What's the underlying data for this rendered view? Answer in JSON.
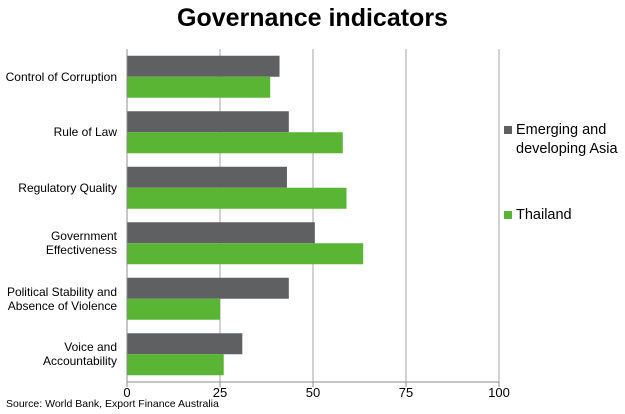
{
  "chart_data": {
    "type": "bar",
    "orientation": "horizontal",
    "title": "Governance indicators",
    "categories": [
      "Control of Corruption",
      "Rule of Law",
      "Regulatory Quality",
      "Government\nEffectiveness",
      "Political Stability and\nAbsence of Violence",
      "Voice and\nAccountability"
    ],
    "series": [
      {
        "name": "Emerging and\ndeveloping Asia",
        "color": "#5f6062",
        "values": [
          41,
          43.5,
          43,
          50.5,
          43.5,
          31
        ]
      },
      {
        "name": "Thailand",
        "color": "#59b533",
        "values": [
          38.5,
          58,
          59,
          63.5,
          25,
          26
        ]
      }
    ],
    "xlim": [
      0,
      100
    ],
    "xticks": [
      "0",
      "25",
      "50",
      "75",
      "100"
    ],
    "grid": "vertical",
    "legend_position": "right",
    "source": "Source: World Bank, Export Finance Australia"
  }
}
